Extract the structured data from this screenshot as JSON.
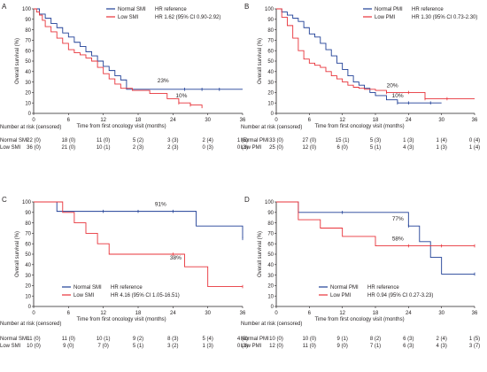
{
  "chart_data": [
    {
      "type": "line",
      "panel_label": "A",
      "ylabel": "Overall survival (%)",
      "xlabel": "Time from first oncology visit (months)",
      "xlim": [
        0,
        36
      ],
      "ylim": [
        0,
        100
      ],
      "xticks": [
        "0",
        "6",
        "12",
        "18",
        "24",
        "30",
        "36"
      ],
      "yticks": [
        "0",
        "10",
        "20",
        "30",
        "40",
        "50",
        "60",
        "70",
        "80",
        "90",
        "100"
      ],
      "legend_position": "top-right",
      "series": [
        {
          "name": "Normal SMI",
          "stat": "HR reference",
          "color": "#1f3f96",
          "x": [
            0,
            1,
            2,
            3,
            4,
            5,
            6,
            7,
            8,
            9,
            10,
            11,
            12,
            13,
            14,
            15,
            16,
            36
          ],
          "y": [
            100,
            95,
            91,
            86,
            82,
            77,
            73,
            68,
            64,
            59,
            55,
            50,
            45,
            41,
            36,
            32,
            23,
            23
          ],
          "censor_x": [
            26,
            29,
            32
          ]
        },
        {
          "name": "Low SMI",
          "stat": "HR 1.62 (95% CI 0.90-2.92)",
          "color": "#e8333a",
          "x": [
            0,
            0.5,
            1,
            1.5,
            2,
            3,
            4,
            5,
            6,
            7,
            8,
            9,
            10,
            11,
            12,
            13,
            14,
            15,
            17,
            20,
            23,
            25,
            27,
            29
          ],
          "y": [
            100,
            97,
            94,
            89,
            83,
            78,
            72,
            67,
            61,
            58,
            56,
            53,
            50,
            44,
            38,
            33,
            28,
            24,
            22,
            19,
            14,
            10,
            8,
            5
          ],
          "censor_x": [
            25,
            27
          ]
        }
      ],
      "annotations": [
        "23%",
        "10%"
      ],
      "risk_table": {
        "title": "Number at risk (censored)",
        "rows": [
          {
            "label": "Normal SMI",
            "values": [
              "22 (0)",
              "18 (0)",
              "11 (0)",
              "5 (2)",
              "3 (3)",
              "2 (4)",
              "1 (5)"
            ]
          },
          {
            "label": "Low SMI",
            "values": [
              "36 (0)",
              "21 (0)",
              "10 (1)",
              "2 (3)",
              "2 (3)",
              "0 (3)",
              "0 (3)"
            ]
          }
        ]
      }
    },
    {
      "type": "line",
      "panel_label": "B",
      "ylabel": "Overall survival (%)",
      "xlabel": "Time from first oncology visit (months)",
      "xlim": [
        0,
        36
      ],
      "ylim": [
        0,
        100
      ],
      "xticks": [
        "0",
        "6",
        "12",
        "18",
        "24",
        "30",
        "36"
      ],
      "yticks": [
        "0",
        "10",
        "20",
        "30",
        "40",
        "50",
        "60",
        "70",
        "80",
        "90",
        "100"
      ],
      "legend_position": "top-right",
      "series": [
        {
          "name": "Normal PMI",
          "stat": "HR reference",
          "color": "#1f3f96",
          "x": [
            0,
            1,
            2,
            3,
            4,
            5,
            6,
            7,
            8,
            9,
            10,
            11,
            12,
            13,
            14,
            15,
            16,
            17,
            18,
            20,
            22,
            24,
            30
          ],
          "y": [
            100,
            97,
            94,
            91,
            88,
            82,
            76,
            73,
            67,
            61,
            55,
            48,
            42,
            36,
            30,
            27,
            24,
            20,
            17,
            13,
            10,
            10,
            10
          ],
          "censor_x": [
            22,
            24,
            28
          ]
        },
        {
          "name": "Low PMI",
          "stat": "HR 1.30 (95% CI 0.73-2.30)",
          "color": "#e8333a",
          "x": [
            0,
            1,
            2,
            3,
            4,
            5,
            6,
            7,
            8,
            9,
            10,
            11,
            12,
            13,
            14,
            15,
            16,
            18,
            20,
            22,
            24,
            27,
            36
          ],
          "y": [
            100,
            92,
            84,
            72,
            60,
            52,
            48,
            46,
            44,
            40,
            36,
            33,
            30,
            27,
            25,
            24,
            23,
            22,
            20,
            20,
            20,
            14,
            14
          ],
          "censor_x": [
            20,
            24,
            27,
            31
          ]
        }
      ],
      "annotations": [
        "20%",
        "10%"
      ],
      "risk_table": {
        "title": "Number at risk (censored)",
        "rows": [
          {
            "label": "Normal PMI",
            "values": [
              "33 (0)",
              "27 (0)",
              "15 (1)",
              "5 (3)",
              "1 (3)",
              "1 (4)",
              "0 (4)"
            ]
          },
          {
            "label": "Low PMI",
            "values": [
              "25 (0)",
              "12 (0)",
              "6 (0)",
              "5 (1)",
              "4 (3)",
              "1 (3)",
              "1 (4)"
            ]
          }
        ]
      }
    },
    {
      "type": "line",
      "panel_label": "C",
      "ylabel": "Overall survival (%)",
      "xlabel": "Time from first oncology visit (months)",
      "xlim": [
        0,
        36
      ],
      "ylim": [
        0,
        100
      ],
      "xticks": [
        "0",
        "6",
        "12",
        "18",
        "24",
        "30",
        "36"
      ],
      "yticks": [
        "0",
        "10",
        "20",
        "30",
        "40",
        "50",
        "60",
        "70",
        "80",
        "90",
        "100"
      ],
      "legend_position": "bottom-left",
      "series": [
        {
          "name": "Normal SMI",
          "stat": "HR reference",
          "color": "#1f3f96",
          "x": [
            0,
            4,
            26,
            28,
            36
          ],
          "y": [
            100,
            91,
            91,
            77,
            65
          ],
          "censor_x": [
            12,
            18,
            24,
            36
          ]
        },
        {
          "name": "Low SMI",
          "stat": "HR 4.16 (95% CI 1.05-16.51)",
          "color": "#e8333a",
          "x": [
            0,
            5,
            7,
            9,
            11,
            13,
            24,
            26,
            30,
            36
          ],
          "y": [
            100,
            90,
            80,
            70,
            60,
            50,
            50,
            38,
            19,
            19
          ],
          "censor_x": [
            24,
            36
          ]
        }
      ],
      "annotations": [
        "91%",
        "38%"
      ],
      "risk_table": {
        "title": "Number at risk (censored)",
        "rows": [
          {
            "label": "Normal SMI",
            "values": [
              "11 (0)",
              "11 (0)",
              "10 (1)",
              "9 (2)",
              "8 (3)",
              "5 (4)",
              "4 (8)"
            ]
          },
          {
            "label": "Low SMI",
            "values": [
              "10 (0)",
              "9 (0)",
              "7 (0)",
              "5 (1)",
              "3 (2)",
              "1 (3)",
              "0 (3)"
            ]
          }
        ]
      }
    },
    {
      "type": "line",
      "panel_label": "D",
      "ylabel": "Overall survival (%)",
      "xlabel": "Time from first oncology visit (months)",
      "xlim": [
        0,
        36
      ],
      "ylim": [
        0,
        100
      ],
      "xticks": [
        "0",
        "6",
        "12",
        "18",
        "24",
        "30",
        "36"
      ],
      "yticks": [
        "0",
        "10",
        "20",
        "30",
        "40",
        "50",
        "60",
        "70",
        "80",
        "90",
        "100"
      ],
      "legend_position": "bottom-left",
      "series": [
        {
          "name": "Normal PMI",
          "stat": "HR reference",
          "color": "#1f3f96",
          "x": [
            0,
            4,
            24,
            26,
            28,
            30,
            36
          ],
          "y": [
            100,
            90,
            77,
            62,
            47,
            31,
            31
          ],
          "censor_x": [
            12,
            24,
            36
          ]
        },
        {
          "name": "Low PMI",
          "stat": "HR 0.94 (95% CI 0.27-3.23)",
          "color": "#e8333a",
          "x": [
            0,
            4,
            8,
            12,
            18,
            36
          ],
          "y": [
            100,
            83,
            75,
            67,
            58,
            58
          ],
          "censor_x": [
            24,
            30,
            36
          ]
        }
      ],
      "annotations": [
        "77%",
        "58%"
      ],
      "risk_table": {
        "title": "Number at risk (censored)",
        "rows": [
          {
            "label": "Normal PMI",
            "values": [
              "10 (0)",
              "10 (0)",
              "9 (1)",
              "8 (2)",
              "6 (3)",
              "2 (4)",
              "1 (5)"
            ]
          },
          {
            "label": "Low PMI",
            "values": [
              "12 (0)",
              "11 (0)",
              "9 (0)",
              "7 (1)",
              "6 (3)",
              "4 (3)",
              "3 (7)"
            ]
          }
        ]
      }
    }
  ]
}
